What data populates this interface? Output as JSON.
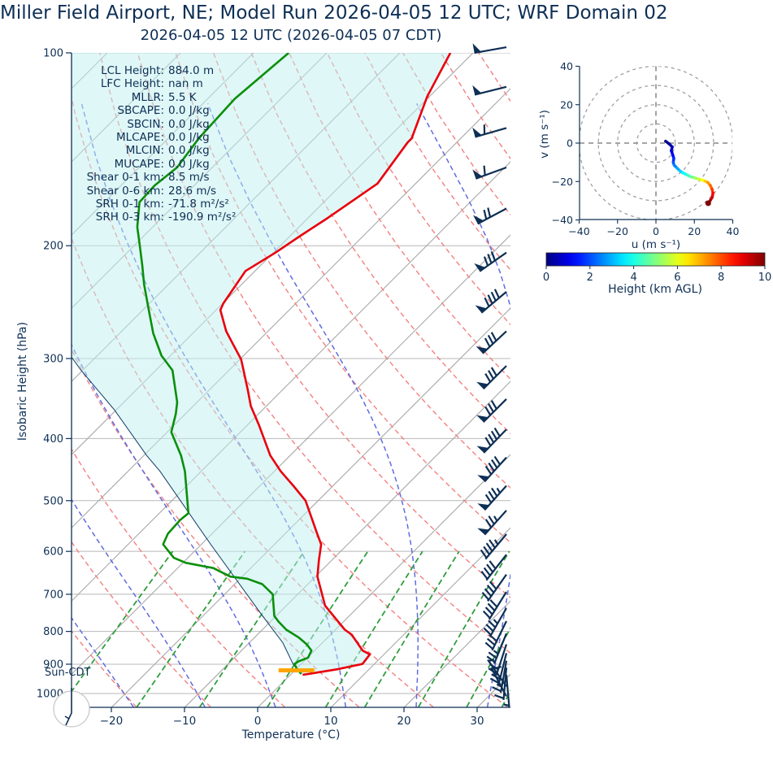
{
  "title": "Miller Field Airport, NE; Model Run 2026-04-05 12 UTC; WRF Domain 02",
  "subtitle": "2026-04-05 12 UTC  (2026-04-05 07 CDT)",
  "stats": [
    {
      "label": "LCL Height:",
      "value": "884.0 m"
    },
    {
      "label": "LFC Height:",
      "value": "nan m"
    },
    {
      "label": "MLLR:",
      "value": "5.5 K"
    },
    {
      "label": "SBCAPE:",
      "value": "0.0 J/kg"
    },
    {
      "label": "SBCIN:",
      "value": "0.0 J/kg"
    },
    {
      "label": "MLCAPE:",
      "value": "0.0 J/kg"
    },
    {
      "label": "MLCIN:",
      "value": "0.0 J/kg"
    },
    {
      "label": "MUCAPE:",
      "value": "0.0 J/kg"
    },
    {
      "label": "Shear 0-1 km:",
      "value": "8.5 m/s"
    },
    {
      "label": "Shear 0-6 km:",
      "value": "28.6 m/s"
    },
    {
      "label": "SRH 0-1 km:",
      "value": "-71.8 m²/s²"
    },
    {
      "label": "SRH 0-3 km:",
      "value": "-190.9 m²/s²"
    }
  ],
  "colors": {
    "text": "#0e2f55",
    "temperature": "#e8000d",
    "dewpoint": "#0a8f0a",
    "parcel": "#123a63",
    "isotherm": "#a8a8a8",
    "grid": "#b8b8b8",
    "dry_adiabat": "#f38181",
    "moist_adiabat": "#5f6ddf",
    "mixing_ratio": "#2f9e3e",
    "fill": "#bfefef",
    "barb": "#0e2f55",
    "surface_marker": "#ffa500",
    "hodo_grid": "#999999",
    "circle_outline": "#c8c8c8"
  },
  "chart_data": {
    "type": "skewt-logp",
    "skewt": {
      "xlabel": "Temperature (°C)",
      "ylabel": "Isobaric Height (hPa)",
      "extra_tick_label": "Sun-CDT",
      "x_ticks": [
        -20,
        -10,
        0,
        10,
        20,
        30
      ],
      "p_ticks": [
        100,
        200,
        300,
        400,
        500,
        600,
        700,
        800,
        900,
        1000
      ],
      "xlim_bottom": [
        -25.4,
        34.6
      ],
      "plim": [
        100,
        1050
      ],
      "temperature_profile": [
        [
          100,
          -63.1
        ],
        [
          117,
          -60.3
        ],
        [
          136,
          -56.7
        ],
        [
          138,
          -56.7
        ],
        [
          160,
          -55.2
        ],
        [
          181,
          -57.3
        ],
        [
          193,
          -58.6
        ],
        [
          205,
          -59.7
        ],
        [
          219,
          -61.3
        ],
        [
          246,
          -59.9
        ],
        [
          252,
          -59.4
        ],
        [
          272,
          -55.7
        ],
        [
          282,
          -53.6
        ],
        [
          301,
          -49.8
        ],
        [
          336,
          -44.7
        ],
        [
          356,
          -42.1
        ],
        [
          381,
          -38.4
        ],
        [
          425,
          -32.7
        ],
        [
          450,
          -29.1
        ],
        [
          474,
          -25.4
        ],
        [
          500,
          -21.7
        ],
        [
          563,
          -15.6
        ],
        [
          585,
          -13.6
        ],
        [
          620,
          -11.7
        ],
        [
          657,
          -9.7
        ],
        [
          729,
          -4.7
        ],
        [
          757,
          -2.1
        ],
        [
          795,
          1.3
        ],
        [
          809,
          2.9
        ],
        [
          857,
          6.6
        ],
        [
          869,
          8.1
        ],
        [
          899,
          8.4
        ],
        [
          917,
          5.6
        ],
        [
          930,
          2.8
        ],
        [
          935,
          1.7
        ]
      ],
      "dewpoint_profile": [
        [
          100,
          -85.2
        ],
        [
          118,
          -86.3
        ],
        [
          136,
          -85.8
        ],
        [
          151,
          -84.8
        ],
        [
          161,
          -85.4
        ],
        [
          171,
          -85.2
        ],
        [
          187,
          -82.1
        ],
        [
          200,
          -79.2
        ],
        [
          215,
          -76.1
        ],
        [
          230,
          -73.3
        ],
        [
          253,
          -69.0
        ],
        [
          274,
          -65.4
        ],
        [
          297,
          -61.2
        ],
        [
          313,
          -57.7
        ],
        [
          351,
          -52.7
        ],
        [
          366,
          -51.3
        ],
        [
          387,
          -49.7
        ],
        [
          391,
          -49.4
        ],
        [
          425,
          -44.9
        ],
        [
          450,
          -42.2
        ],
        [
          523,
          -36.0
        ],
        [
          536,
          -36.2
        ],
        [
          563,
          -36.0
        ],
        [
          585,
          -35.2
        ],
        [
          614,
          -31.9
        ],
        [
          625,
          -29.6
        ],
        [
          637,
          -25.1
        ],
        [
          657,
          -21.6
        ],
        [
          662,
          -19.0
        ],
        [
          675,
          -16.2
        ],
        [
          700,
          -13.4
        ],
        [
          757,
          -10.2
        ],
        [
          772,
          -8.9
        ],
        [
          795,
          -6.7
        ],
        [
          818,
          -3.9
        ],
        [
          838,
          -1.9
        ],
        [
          857,
          -0.4
        ],
        [
          879,
          0.1
        ],
        [
          891,
          -0.7
        ],
        [
          899,
          -0.9
        ],
        [
          917,
          0.2
        ],
        [
          932,
          1.4
        ]
      ],
      "parcel_profile": [
        [
          299,
          -73.2
        ],
        [
          313,
          -70.2
        ],
        [
          361,
          -60.2
        ],
        [
          425,
          -49.6
        ],
        [
          450,
          -45.6
        ],
        [
          585,
          -28.7
        ],
        [
          757,
          -11.8
        ],
        [
          833,
          -5.4
        ],
        [
          899,
          -1.1
        ],
        [
          932,
          1.3
        ]
      ],
      "surface_marker": {
        "p": 920,
        "t0": -2.2,
        "t1": 2.7
      },
      "isotherm_step": 10,
      "dry_adiabats_K": {
        "start": 243,
        "end": 503,
        "step": 10
      },
      "moist_adiabats_K": {
        "start": 233,
        "end": 393,
        "step": 10
      },
      "mixing_ratios_gkg": [
        0.4,
        1,
        2,
        4,
        7,
        10,
        16,
        24,
        32
      ],
      "barbs": [
        {
          "p": 98,
          "angle": -10,
          "flags": 1,
          "fulls": 0,
          "halves": 0
        },
        {
          "p": 113,
          "angle": -14,
          "flags": 1,
          "fulls": 0,
          "halves": 0
        },
        {
          "p": 131,
          "angle": -16,
          "flags": 1,
          "fulls": 1,
          "halves": 0
        },
        {
          "p": 151,
          "angle": -20,
          "flags": 1,
          "fulls": 1,
          "halves": 0
        },
        {
          "p": 175,
          "angle": -28,
          "flags": 1,
          "fulls": 2,
          "halves": 0
        },
        {
          "p": 205,
          "angle": -35,
          "flags": 1,
          "fulls": 3,
          "halves": 0
        },
        {
          "p": 236,
          "angle": -40,
          "flags": 1,
          "fulls": 4,
          "halves": 0
        },
        {
          "p": 272,
          "angle": -43,
          "flags": 1,
          "fulls": 3,
          "halves": 0
        },
        {
          "p": 308,
          "angle": -45,
          "flags": 1,
          "fulls": 3,
          "halves": 0
        },
        {
          "p": 347,
          "angle": -45,
          "flags": 1,
          "fulls": 3,
          "halves": 0
        },
        {
          "p": 387,
          "angle": -46,
          "flags": 1,
          "fulls": 4,
          "halves": 0
        },
        {
          "p": 428,
          "angle": -48,
          "flags": 1,
          "fulls": 4,
          "halves": 0
        },
        {
          "p": 474,
          "angle": -48,
          "flags": 1,
          "fulls": 3,
          "halves": 1
        },
        {
          "p": 518,
          "angle": -48,
          "flags": 1,
          "fulls": 2,
          "halves": 1
        },
        {
          "p": 564,
          "angle": -50,
          "flags": 0,
          "fulls": 4,
          "halves": 1
        },
        {
          "p": 607,
          "angle": -52,
          "flags": 0,
          "fulls": 4,
          "halves": 0
        },
        {
          "p": 652,
          "angle": -55,
          "flags": 0,
          "fulls": 4,
          "halves": 0
        },
        {
          "p": 694,
          "angle": -58,
          "flags": 0,
          "fulls": 4,
          "halves": 0
        },
        {
          "p": 736,
          "angle": -60,
          "flags": 0,
          "fulls": 3,
          "halves": 1
        },
        {
          "p": 771,
          "angle": -64,
          "flags": 0,
          "fulls": 3,
          "halves": 0
        },
        {
          "p": 806,
          "angle": -68,
          "flags": 0,
          "fulls": 2,
          "halves": 1
        },
        {
          "p": 838,
          "angle": -72,
          "flags": 0,
          "fulls": 2,
          "halves": 0
        },
        {
          "p": 865,
          "angle": -76,
          "flags": 0,
          "fulls": 2,
          "halves": 0
        },
        {
          "p": 889,
          "angle": -80,
          "flags": 0,
          "fulls": 1,
          "halves": 1
        },
        {
          "p": 911,
          "angle": -85,
          "flags": 0,
          "fulls": 1,
          "halves": 0
        },
        {
          "p": 935,
          "angle": -95,
          "flags": 0,
          "fulls": 0,
          "halves": 1
        },
        {
          "p": 975,
          "angle": 55,
          "flags": 0,
          "fulls": 0,
          "halves": 1
        },
        {
          "p": 1010,
          "angle": 62,
          "flags": 0,
          "fulls": 1,
          "halves": 0
        }
      ]
    },
    "hodograph": {
      "xlabel": "u (m s⁻¹)",
      "ylabel": "v (m s⁻¹)",
      "ticks": [
        -40,
        -20,
        0,
        20,
        40
      ],
      "ring_radii": [
        10,
        20,
        30,
        40
      ],
      "trace_uvh": [
        [
          5,
          1,
          0
        ],
        [
          7,
          -0.5,
          0.25
        ],
        [
          8.5,
          -2,
          0.5
        ],
        [
          8,
          -4,
          0.75
        ],
        [
          8.7,
          -6,
          1.1
        ],
        [
          9.3,
          -8,
          1.5
        ],
        [
          9,
          -10,
          1.9
        ],
        [
          9.5,
          -11.5,
          2.3
        ],
        [
          11,
          -13,
          2.7
        ],
        [
          12.5,
          -14.5,
          3.1
        ],
        [
          14,
          -15.5,
          3.5
        ],
        [
          16,
          -16.5,
          4
        ],
        [
          18,
          -17.5,
          4.5
        ],
        [
          20,
          -18,
          5
        ],
        [
          22,
          -18.7,
          5.5
        ],
        [
          24,
          -19.2,
          6
        ],
        [
          25.5,
          -19.8,
          6.5
        ],
        [
          27,
          -20.5,
          7
        ],
        [
          28.3,
          -22,
          7.5
        ],
        [
          29.2,
          -24,
          8
        ],
        [
          29.7,
          -26,
          8.5
        ],
        [
          29.3,
          -28.2,
          9
        ],
        [
          28.2,
          -30,
          9.5
        ],
        [
          27.2,
          -31.3,
          10
        ]
      ],
      "colorbar": {
        "label": "Height (km AGL)",
        "ticks": [
          0,
          2,
          4,
          6,
          8,
          10
        ],
        "min": 0,
        "max": 10
      }
    }
  }
}
